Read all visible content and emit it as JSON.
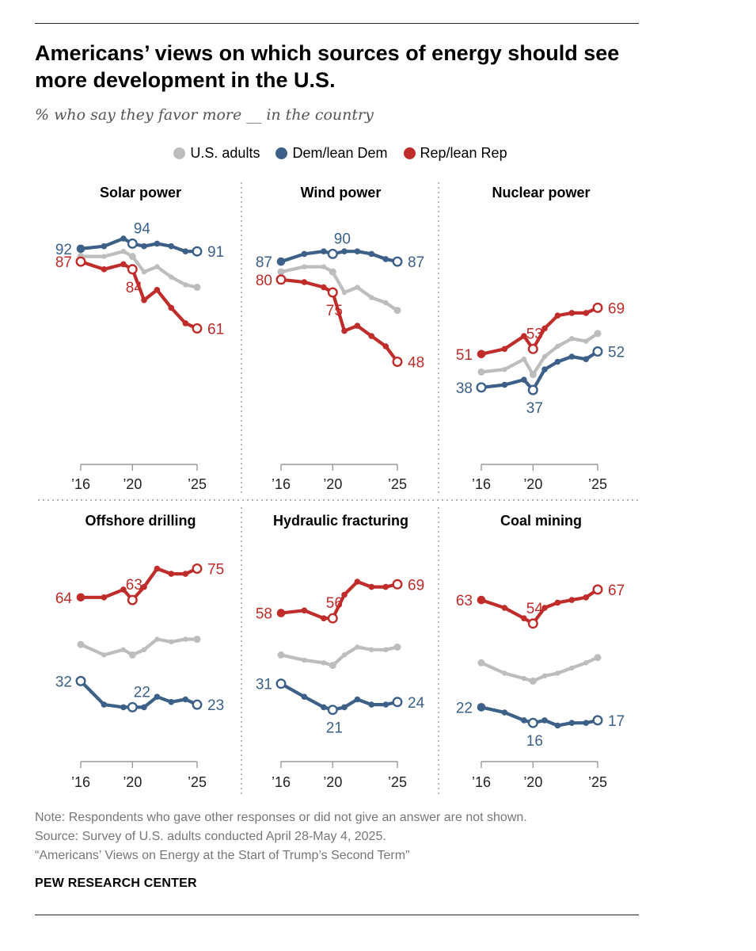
{
  "title": "Americans’ views on which sources of energy should see more development in the U.S.",
  "subtitle": "% who say they favor more __ in the country",
  "colors": {
    "us_adults": "#bdbdbd",
    "dem": "#3c6088",
    "rep": "#bf2c2a",
    "axis": "#999999"
  },
  "legend": [
    {
      "key": "us_adults",
      "label": "U.S. adults"
    },
    {
      "key": "dem",
      "label": "Dem/lean Dem"
    },
    {
      "key": "rep",
      "label": "Rep/lean Rep"
    }
  ],
  "chart_data": [
    {
      "type": "line",
      "title": "Solar power",
      "xlim": [
        2016,
        2025
      ],
      "xticks": [
        {
          "x": 2016,
          "label": "’16"
        },
        {
          "x": 2020,
          "label": "’20"
        },
        {
          "x": 2025,
          "label": "’25"
        }
      ],
      "x": [
        2016,
        2017.8,
        2019.3,
        2020,
        2020.9,
        2021.9,
        2023,
        2024.1,
        2025
      ],
      "series": [
        {
          "name": "U.S. adults",
          "key": "us_adults",
          "values": [
            89,
            89,
            91,
            89,
            83,
            85,
            81,
            78,
            77
          ]
        },
        {
          "name": "Dem/lean Dem",
          "key": "dem",
          "values": [
            92,
            93,
            96,
            94,
            93,
            94,
            93,
            91,
            91
          ],
          "labels": [
            {
              "i": 0,
              "text": "92"
            },
            {
              "i": 3,
              "text": "94"
            },
            {
              "i": 8,
              "text": "91"
            }
          ],
          "hollow": [
            3,
            8
          ]
        },
        {
          "name": "Rep/lean Rep",
          "key": "rep",
          "values": [
            87,
            84,
            86,
            84,
            72,
            76,
            69,
            63,
            61
          ],
          "labels": [
            {
              "i": 0,
              "text": "87"
            },
            {
              "i": 3,
              "text": "84"
            },
            {
              "i": 8,
              "text": "61"
            }
          ],
          "hollow": [
            0,
            3,
            8
          ]
        }
      ]
    },
    {
      "type": "line",
      "title": "Wind power",
      "xlim": [
        2016,
        2025
      ],
      "xticks": [
        {
          "x": 2016,
          "label": "’16"
        },
        {
          "x": 2020,
          "label": "’20"
        },
        {
          "x": 2025,
          "label": "’25"
        }
      ],
      "x": [
        2016,
        2017.8,
        2019.3,
        2020,
        2020.9,
        2021.9,
        2023,
        2024.1,
        2025
      ],
      "series": [
        {
          "name": "U.S. adults",
          "key": "us_adults",
          "values": [
            83,
            85,
            85,
            83,
            75,
            77,
            73,
            71,
            68
          ]
        },
        {
          "name": "Dem/lean Dem",
          "key": "dem",
          "values": [
            87,
            90,
            91,
            90,
            91,
            91,
            90,
            88,
            87
          ],
          "labels": [
            {
              "i": 0,
              "text": "87"
            },
            {
              "i": 3,
              "text": "90"
            },
            {
              "i": 8,
              "text": "87"
            }
          ],
          "hollow": [
            3,
            8
          ]
        },
        {
          "name": "Rep/lean Rep",
          "key": "rep",
          "values": [
            80,
            79,
            77,
            75,
            60,
            62,
            58,
            54,
            48
          ],
          "labels": [
            {
              "i": 0,
              "text": "80"
            },
            {
              "i": 3,
              "text": "75"
            },
            {
              "i": 8,
              "text": "48"
            }
          ],
          "hollow": [
            0,
            3,
            8
          ]
        }
      ]
    },
    {
      "type": "line",
      "title": "Nuclear power",
      "xlim": [
        2016,
        2025
      ],
      "xticks": [
        {
          "x": 2016,
          "label": "’16"
        },
        {
          "x": 2020,
          "label": "’20"
        },
        {
          "x": 2025,
          "label": "’25"
        }
      ],
      "x": [
        2016,
        2017.8,
        2019.3,
        2020,
        2020.9,
        2021.9,
        2023,
        2024.1,
        2025
      ],
      "series": [
        {
          "name": "U.S. adults",
          "key": "us_adults",
          "values": [
            44,
            45,
            49,
            43,
            50,
            54,
            57,
            56,
            59
          ]
        },
        {
          "name": "Dem/lean Dem",
          "key": "dem",
          "values": [
            38,
            39,
            41,
            37,
            45,
            48,
            50,
            49,
            52
          ],
          "labels": [
            {
              "i": 0,
              "text": "38"
            },
            {
              "i": 3,
              "text": "37"
            },
            {
              "i": 8,
              "text": "52"
            }
          ],
          "hollow": [
            0,
            3,
            8
          ]
        },
        {
          "name": "Rep/lean Rep",
          "key": "rep",
          "values": [
            51,
            53,
            58,
            53,
            61,
            66,
            67,
            67,
            69
          ],
          "labels": [
            {
              "i": 0,
              "text": "51"
            },
            {
              "i": 3,
              "text": "53"
            },
            {
              "i": 8,
              "text": "69"
            }
          ],
          "hollow": [
            3,
            8
          ]
        }
      ]
    },
    {
      "type": "line",
      "title": "Offshore drilling",
      "xlim": [
        2016,
        2025
      ],
      "xticks": [
        {
          "x": 2016,
          "label": "’16"
        },
        {
          "x": 2020,
          "label": "’20"
        },
        {
          "x": 2025,
          "label": "’25"
        }
      ],
      "x": [
        2016,
        2017.8,
        2019.3,
        2020,
        2020.9,
        2021.9,
        2023,
        2024.1,
        2025
      ],
      "series": [
        {
          "name": "U.S. adults",
          "key": "us_adults",
          "values": [
            46,
            42,
            44,
            42,
            44,
            48,
            47,
            48,
            48
          ]
        },
        {
          "name": "Dem/lean Dem",
          "key": "dem",
          "values": [
            32,
            23,
            22,
            22,
            22,
            26,
            24,
            25,
            23
          ],
          "labels": [
            {
              "i": 0,
              "text": "32"
            },
            {
              "i": 3,
              "text": "22"
            },
            {
              "i": 8,
              "text": "23"
            }
          ],
          "hollow": [
            0,
            3,
            8
          ]
        },
        {
          "name": "Rep/lean Rep",
          "key": "rep",
          "values": [
            64,
            64,
            67,
            63,
            68,
            75,
            73,
            73,
            75
          ],
          "labels": [
            {
              "i": 0,
              "text": "64"
            },
            {
              "i": 3,
              "text": "63"
            },
            {
              "i": 8,
              "text": "75"
            }
          ],
          "hollow": [
            3,
            8
          ]
        }
      ]
    },
    {
      "type": "line",
      "title": "Hydraulic fracturing",
      "xlim": [
        2016,
        2025
      ],
      "xticks": [
        {
          "x": 2016,
          "label": "’16"
        },
        {
          "x": 2020,
          "label": "’20"
        },
        {
          "x": 2025,
          "label": "’25"
        }
      ],
      "x": [
        2016,
        2017.8,
        2019.3,
        2020,
        2020.9,
        2021.9,
        2023,
        2024.1,
        2025
      ],
      "series": [
        {
          "name": "U.S. adults",
          "key": "us_adults",
          "values": [
            42,
            40,
            39,
            38,
            42,
            45,
            44,
            44,
            45
          ]
        },
        {
          "name": "Dem/lean Dem",
          "key": "dem",
          "values": [
            31,
            26,
            22,
            21,
            22,
            25,
            23,
            23,
            24
          ],
          "labels": [
            {
              "i": 0,
              "text": "31"
            },
            {
              "i": 3,
              "text": "21"
            },
            {
              "i": 8,
              "text": "24"
            }
          ],
          "hollow": [
            0,
            3,
            8
          ]
        },
        {
          "name": "Rep/lean Rep",
          "key": "rep",
          "values": [
            58,
            59,
            56,
            56,
            65,
            70,
            68,
            68,
            69
          ],
          "labels": [
            {
              "i": 0,
              "text": "58"
            },
            {
              "i": 3,
              "text": "56"
            },
            {
              "i": 8,
              "text": "69"
            }
          ],
          "hollow": [
            3,
            8
          ]
        }
      ]
    },
    {
      "type": "line",
      "title": "Coal mining",
      "xlim": [
        2016,
        2025
      ],
      "xticks": [
        {
          "x": 2016,
          "label": "’16"
        },
        {
          "x": 2020,
          "label": "’20"
        },
        {
          "x": 2025,
          "label": "’25"
        }
      ],
      "x": [
        2016,
        2017.8,
        2019.3,
        2020,
        2020.9,
        2021.9,
        2023,
        2024.1,
        2025
      ],
      "series": [
        {
          "name": "U.S. adults",
          "key": "us_adults",
          "values": [
            39,
            35,
            33,
            32,
            34,
            35,
            37,
            39,
            41
          ]
        },
        {
          "name": "Dem/lean Dem",
          "key": "dem",
          "values": [
            22,
            20,
            17,
            16,
            17,
            15,
            16,
            16,
            17
          ],
          "labels": [
            {
              "i": 0,
              "text": "22"
            },
            {
              "i": 3,
              "text": "16"
            },
            {
              "i": 8,
              "text": "17"
            }
          ],
          "hollow": [
            3,
            8
          ]
        },
        {
          "name": "Rep/lean Rep",
          "key": "rep",
          "values": [
            63,
            60,
            56,
            54,
            60,
            62,
            63,
            64,
            67
          ],
          "labels": [
            {
              "i": 0,
              "text": "63"
            },
            {
              "i": 3,
              "text": "54"
            },
            {
              "i": 8,
              "text": "67"
            }
          ],
          "hollow": [
            3,
            8
          ]
        }
      ]
    }
  ],
  "footer": {
    "note": "Note: Respondents who gave other responses or did not give an answer are not shown.",
    "source": "Source: Survey of U.S. adults conducted April 28-May 4, 2025.",
    "report": "“Americans’ Views on Energy at the Start of Trump’s Second Term”",
    "brand": "PEW RESEARCH CENTER"
  }
}
